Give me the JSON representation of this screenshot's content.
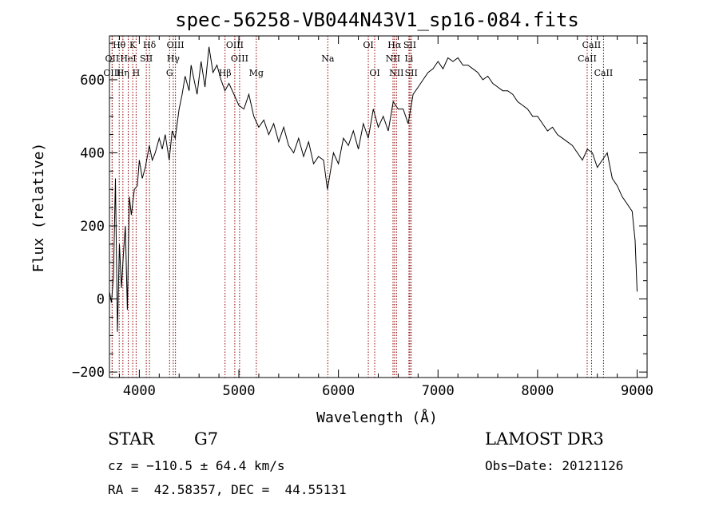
{
  "chart_data": {
    "type": "line",
    "title": "spec-56258-VB044N43V1_sp16-084.fits",
    "xlabel": "Wavelength (Å)",
    "ylabel": "Flux (relative)",
    "xlim": [
      3700,
      9100
    ],
    "ylim": [
      -215,
      720
    ],
    "x_ticks": [
      4000,
      5000,
      6000,
      7000,
      8000,
      9000
    ],
    "y_ticks": [
      -200,
      0,
      200,
      400,
      600
    ],
    "line_color": "#000000",
    "marker_color": "#8b0000",
    "series": [
      {
        "name": "flux",
        "x": [
          3700,
          3720,
          3740,
          3760,
          3780,
          3800,
          3820,
          3840,
          3860,
          3880,
          3900,
          3920,
          3950,
          3980,
          4000,
          4030,
          4060,
          4100,
          4130,
          4160,
          4200,
          4230,
          4260,
          4300,
          4330,
          4360,
          4400,
          4430,
          4460,
          4500,
          4520,
          4550,
          4580,
          4620,
          4660,
          4700,
          4740,
          4780,
          4820,
          4860,
          4900,
          4950,
          5000,
          5050,
          5100,
          5150,
          5200,
          5250,
          5300,
          5350,
          5400,
          5450,
          5500,
          5550,
          5600,
          5650,
          5700,
          5750,
          5800,
          5850,
          5890,
          5950,
          6000,
          6050,
          6100,
          6150,
          6200,
          6250,
          6300,
          6350,
          6400,
          6450,
          6500,
          6550,
          6600,
          6650,
          6700,
          6750,
          6800,
          6850,
          6900,
          6950,
          7000,
          7050,
          7100,
          7150,
          7200,
          7250,
          7300,
          7350,
          7400,
          7450,
          7500,
          7550,
          7600,
          7650,
          7700,
          7750,
          7800,
          7850,
          7900,
          7950,
          8000,
          8050,
          8100,
          8150,
          8200,
          8250,
          8300,
          8350,
          8400,
          8450,
          8500,
          8550,
          8600,
          8650,
          8700,
          8750,
          8800,
          8850,
          8900,
          8950,
          8980,
          9000
        ],
        "y": [
          20,
          -10,
          60,
          330,
          -90,
          150,
          30,
          120,
          200,
          -30,
          280,
          230,
          300,
          310,
          380,
          330,
          360,
          420,
          380,
          400,
          440,
          410,
          450,
          380,
          460,
          440,
          520,
          560,
          610,
          570,
          640,
          600,
          560,
          650,
          580,
          690,
          620,
          640,
          600,
          570,
          590,
          560,
          530,
          520,
          560,
          500,
          470,
          490,
          450,
          480,
          430,
          470,
          420,
          400,
          440,
          390,
          430,
          370,
          390,
          380,
          300,
          400,
          370,
          440,
          420,
          460,
          410,
          480,
          440,
          520,
          470,
          500,
          460,
          540,
          520,
          520,
          480,
          560,
          580,
          600,
          620,
          630,
          650,
          630,
          660,
          650,
          660,
          640,
          640,
          630,
          620,
          600,
          610,
          590,
          580,
          570,
          570,
          560,
          540,
          530,
          520,
          500,
          500,
          480,
          460,
          470,
          450,
          440,
          430,
          420,
          400,
          380,
          410,
          400,
          360,
          380,
          400,
          330,
          310,
          280,
          260,
          240,
          160,
          20
        ]
      }
    ],
    "lines": [
      {
        "name": "Hθ",
        "wavelength": 3798,
        "row": 0
      },
      {
        "name": "K",
        "wavelength": 3934,
        "row": 0
      },
      {
        "name": "Hδ",
        "wavelength": 4102,
        "row": 0
      },
      {
        "name": "OIII",
        "wavelength": 4363,
        "row": 0
      },
      {
        "name": "OIII",
        "wavelength": 4959,
        "row": 0
      },
      {
        "name": "OI",
        "wavelength": 6300,
        "row": 0
      },
      {
        "name": "Hα",
        "wavelength": 6563,
        "row": 0
      },
      {
        "name": "SII",
        "wavelength": 6717,
        "row": 0
      },
      {
        "name": "CaII",
        "wavelength": 8542,
        "row": 0
      },
      {
        "name": "OII",
        "wavelength": 3727,
        "row": 1
      },
      {
        "name": "HeI",
        "wavelength": 3889,
        "row": 1
      },
      {
        "name": "SII",
        "wavelength": 4070,
        "row": 1
      },
      {
        "name": "Hγ",
        "wavelength": 4341,
        "row": 1
      },
      {
        "name": "OIII",
        "wavelength": 5007,
        "row": 1
      },
      {
        "name": "Na",
        "wavelength": 5893,
        "row": 1
      },
      {
        "name": "NII",
        "wavelength": 6548,
        "row": 1
      },
      {
        "name": "Li",
        "wavelength": 6708,
        "row": 1
      },
      {
        "name": "CaII",
        "wavelength": 8498,
        "row": 1
      },
      {
        "name": "OIII",
        "wavelength": 3727,
        "row": 2
      },
      {
        "name": "Hη",
        "wavelength": 3835,
        "row": 2
      },
      {
        "name": "H",
        "wavelength": 3968,
        "row": 2
      },
      {
        "name": "G",
        "wavelength": 4304,
        "row": 2
      },
      {
        "name": "Hβ",
        "wavelength": 4861,
        "row": 2
      },
      {
        "name": "Mg",
        "wavelength": 5175,
        "row": 2
      },
      {
        "name": "OI",
        "wavelength": 6364,
        "row": 2
      },
      {
        "name": "NII",
        "wavelength": 6583,
        "row": 2
      },
      {
        "name": "SII",
        "wavelength": 6731,
        "row": 2
      },
      {
        "name": "CaII",
        "wavelength": 8662,
        "row": 2
      }
    ]
  },
  "info": {
    "class": "STAR",
    "subclass": "G7",
    "cz": "cz = −110.5 ± 64.4 km/s",
    "coords": "RA =  42.58357, DEC =  44.55131",
    "survey": "LAMOST DR3",
    "obs_date": "Obs−Date: 20121126"
  }
}
